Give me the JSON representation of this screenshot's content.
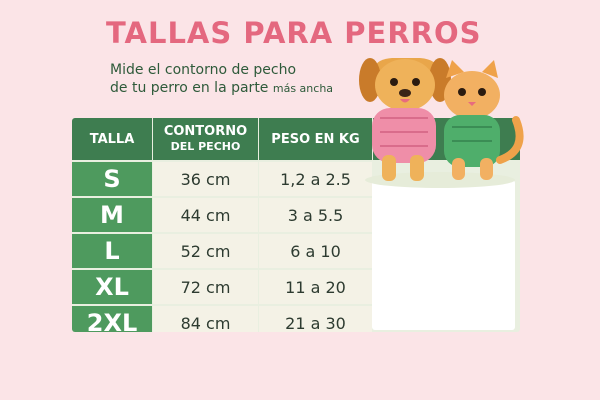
{
  "header": {
    "title": "TALLAS PARA PERROS",
    "subtitle_line1": "Mide el contorno de pecho",
    "subtitle_line2": "de tu perro en la parte",
    "subtitle_emphasis": "más ancha"
  },
  "table": {
    "headers": [
      "TALLA",
      "CONTORNO",
      "DEL PECHO",
      "PESO EN KG"
    ],
    "rows": [
      [
        "S",
        "36 cm",
        "1,2 a 2.5"
      ],
      [
        "M",
        "44 cm",
        "3 a 5.5"
      ],
      [
        "L",
        "52 cm",
        "6 a 10"
      ],
      [
        "XL",
        "72 cm",
        "11 a 20"
      ],
      [
        "2XL",
        "84 cm",
        "21 a 30"
      ]
    ]
  }
}
